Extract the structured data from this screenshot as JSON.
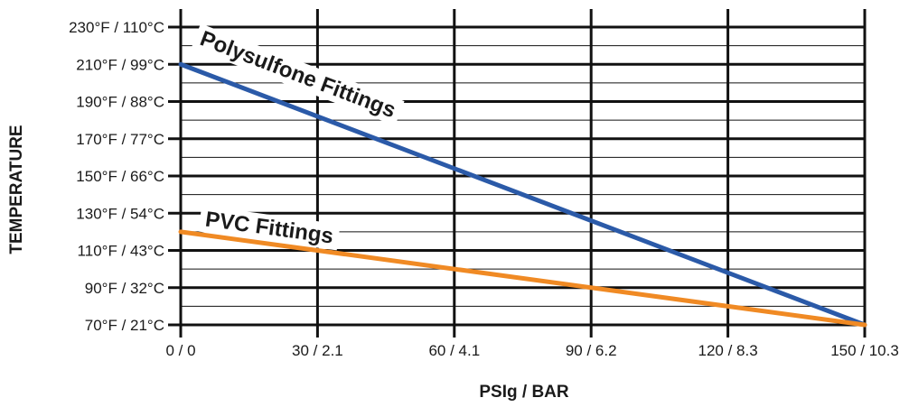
{
  "chart_data": {
    "type": "line",
    "xlabel": "PSIg / BAR",
    "ylabel": "TEMPERATURE",
    "xlim": [
      0,
      150
    ],
    "ylim": [
      70,
      230
    ],
    "x_ticks": [
      {
        "value": 0,
        "label": "0 / 0"
      },
      {
        "value": 30,
        "label": "30 / 2.1"
      },
      {
        "value": 60,
        "label": "60 / 4.1"
      },
      {
        "value": 90,
        "label": "90 / 6.2"
      },
      {
        "value": 120,
        "label": "120 / 8.3"
      },
      {
        "value": 150,
        "label": "150 / 10.3"
      }
    ],
    "y_ticks": [
      {
        "value": 70,
        "label": "70°F / 21°C"
      },
      {
        "value": 90,
        "label": "90°F / 32°C"
      },
      {
        "value": 110,
        "label": "110°F / 43°C"
      },
      {
        "value": 130,
        "label": "130°F / 54°C"
      },
      {
        "value": 150,
        "label": "150°F / 66°C"
      },
      {
        "value": 170,
        "label": "170°F / 77°C"
      },
      {
        "value": 190,
        "label": "190°F / 88°C"
      },
      {
        "value": 210,
        "label": "210°F / 99°C"
      },
      {
        "value": 230,
        "label": "230°F / 110°C"
      }
    ],
    "grid": true,
    "series": [
      {
        "name": "Polysulfone Fittings",
        "color": "#2b5aa8",
        "x": [
          0,
          150
        ],
        "y": [
          210,
          70
        ]
      },
      {
        "name": "PVC Fittings",
        "color": "#f08a24",
        "x": [
          0,
          150
        ],
        "y": [
          120,
          70
        ]
      }
    ]
  }
}
